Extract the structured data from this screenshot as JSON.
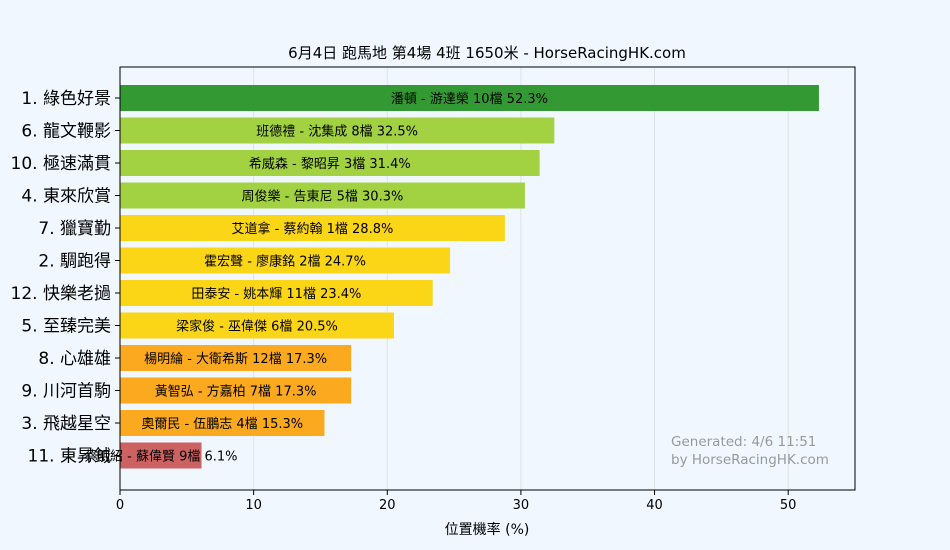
{
  "chart_data": {
    "type": "bar",
    "orientation": "horizontal",
    "title": "6月4日  跑馬地  第4場  4班  1650米 - HorseRacingHK.com",
    "xlabel": "位置機率 (%)",
    "ylabel": "",
    "xlim": [
      0,
      55
    ],
    "xticks": [
      "0",
      "10",
      "20",
      "30",
      "40",
      "50"
    ],
    "grid": true,
    "categories": [
      "1. 綠色好景",
      "6. 龍文鞭影",
      "10. 極速滿貫",
      "4. 東來欣賞",
      "7. 獵寶勤",
      "2. 騆跑得",
      "12. 快樂老撾",
      "5. 至臻完美",
      "8. 心雄雄",
      "9. 川河首駒",
      "3. 飛越星空",
      "11. 東昇鉞"
    ],
    "values": [
      52.3,
      32.5,
      31.4,
      30.3,
      28.8,
      24.7,
      23.4,
      20.5,
      17.3,
      17.3,
      15.3,
      6.1
    ],
    "bar_labels": [
      "潘頓 - 游達榮 10檔  52.3%",
      "班德禮 - 沈集成 8檔  32.5%",
      "希威森 - 黎昭昇 3檔  31.4%",
      "周俊樂 - 告東尼 5檔  30.3%",
      "艾道拿 - 蔡約翰 1檔  28.8%",
      "霍宏聲 - 廖康銘 2檔  24.7%",
      "田泰安 - 姚本輝 11檔  23.4%",
      "梁家俊 - 巫偉傑 6檔  20.5%",
      "楊明綸 - 大衛希斯 12檔  17.3%",
      "黃智弘 - 方嘉柏 7檔  17.3%",
      "奧爾民 - 伍鵬志 4檔  15.3%",
      "蔡明紹 - 蘇偉賢 9檔  6.1%"
    ],
    "bar_colors": [
      "#339933",
      "#a2d242",
      "#a2d242",
      "#a2d242",
      "#fbd617",
      "#fbd617",
      "#fbd617",
      "#fbd617",
      "#fbaa1f",
      "#fbaa1f",
      "#fbaa1f",
      "#cd6262"
    ],
    "watermark": [
      "Generated: 4/6 11:51",
      "by HorseRacingHK.com"
    ]
  }
}
